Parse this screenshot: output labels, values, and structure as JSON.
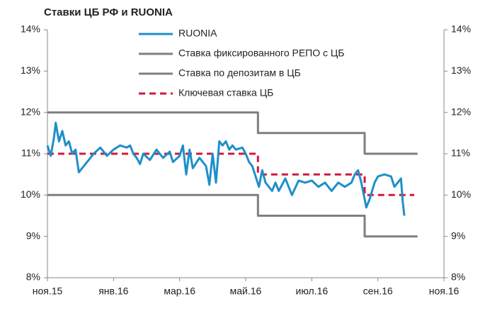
{
  "chart_data": {
    "type": "line",
    "title": "Ставки ЦБ РФ и RUONIA",
    "xlim": [
      0,
      12
    ],
    "xticks": [
      {
        "value": 0,
        "label": "ноя.15"
      },
      {
        "value": 2,
        "label": "янв.16"
      },
      {
        "value": 4,
        "label": "мар.16"
      },
      {
        "value": 6,
        "label": "май.16"
      },
      {
        "value": 8,
        "label": "июл.16"
      },
      {
        "value": 10,
        "label": "сен.16"
      },
      {
        "value": 12,
        "label": "ноя.16"
      }
    ],
    "ylim": [
      8,
      14
    ],
    "yticks": [
      {
        "value": 8,
        "label": "8%"
      },
      {
        "value": 9,
        "label": "9%"
      },
      {
        "value": 10,
        "label": "10%"
      },
      {
        "value": 11,
        "label": "11%"
      },
      {
        "value": 12,
        "label": "12%"
      },
      {
        "value": 13,
        "label": "13%"
      },
      {
        "value": 14,
        "label": "14%"
      }
    ],
    "y2lim": [
      8,
      14
    ],
    "y2ticks": [
      {
        "value": 8,
        "label": "8%"
      },
      {
        "value": 9,
        "label": "9%"
      },
      {
        "value": 10,
        "label": "10%"
      },
      {
        "value": 11,
        "label": "11%"
      },
      {
        "value": 12,
        "label": "12%"
      },
      {
        "value": 13,
        "label": "13%"
      },
      {
        "value": 14,
        "label": "14%"
      }
    ],
    "legend": "top",
    "series": [
      {
        "name": "RUONIA",
        "color": "#1f8fc8",
        "dash": false,
        "x": [
          0,
          0.1,
          0.2,
          0.25,
          0.35,
          0.45,
          0.55,
          0.65,
          0.75,
          0.85,
          0.95,
          1.2,
          1.4,
          1.6,
          1.8,
          2.0,
          2.2,
          2.4,
          2.5,
          2.6,
          2.7,
          2.8,
          2.9,
          3.1,
          3.3,
          3.5,
          3.7,
          3.8,
          4.0,
          4.1,
          4.2,
          4.3,
          4.4,
          4.6,
          4.8,
          4.9,
          5.0,
          5.1,
          5.2,
          5.3,
          5.4,
          5.5,
          5.6,
          5.7,
          5.9,
          6.0,
          6.1,
          6.2,
          6.3,
          6.4,
          6.5,
          6.6,
          6.8,
          6.9,
          7.0,
          7.2,
          7.4,
          7.6,
          7.8,
          8.0,
          8.2,
          8.4,
          8.6,
          8.8,
          9.0,
          9.2,
          9.3,
          9.4,
          9.5,
          9.6,
          9.65,
          9.75,
          9.9,
          10.0,
          10.2,
          10.4,
          10.5,
          10.6,
          10.7,
          10.75,
          10.8
        ],
        "values": [
          11.2,
          10.95,
          11.4,
          11.75,
          11.3,
          11.55,
          11.2,
          11.3,
          11.0,
          11.1,
          10.55,
          10.8,
          11.0,
          11.15,
          10.95,
          11.1,
          11.2,
          11.15,
          11.2,
          11.0,
          10.9,
          10.75,
          11.0,
          10.85,
          11.1,
          10.9,
          11.05,
          10.8,
          10.95,
          11.2,
          10.5,
          11.1,
          10.65,
          10.9,
          10.7,
          10.25,
          11.0,
          10.3,
          11.3,
          11.2,
          11.3,
          11.1,
          11.2,
          11.1,
          11.15,
          11.0,
          10.8,
          10.7,
          10.45,
          10.2,
          10.6,
          10.3,
          10.1,
          10.3,
          10.1,
          10.4,
          10.0,
          10.35,
          10.3,
          10.35,
          10.2,
          10.3,
          10.1,
          10.3,
          10.2,
          10.3,
          10.5,
          10.6,
          10.3,
          9.9,
          9.7,
          9.9,
          10.3,
          10.45,
          10.5,
          10.45,
          10.2,
          10.3,
          10.4,
          9.85,
          9.5
        ]
      },
      {
        "name": "Ставка фиксированного РЕПО с ЦБ",
        "color": "#7f7f7f",
        "dash": false,
        "x": [
          0,
          6.37,
          6.37,
          9.6,
          9.6,
          11.2
        ],
        "values": [
          12,
          12,
          11.5,
          11.5,
          11,
          11
        ]
      },
      {
        "name": "Ставка по депозитам в ЦБ",
        "color": "#7f7f7f",
        "dash": false,
        "x": [
          0,
          6.37,
          6.37,
          9.6,
          9.6,
          11.2
        ],
        "values": [
          10,
          10,
          9.5,
          9.5,
          9,
          9
        ]
      },
      {
        "name": "Ключевая ставка ЦБ",
        "color": "#d6163c",
        "dash": true,
        "x": [
          0,
          6.37,
          6.37,
          9.6,
          9.6,
          11.1
        ],
        "values": [
          11,
          11,
          10.5,
          10.5,
          10,
          10
        ]
      }
    ]
  }
}
